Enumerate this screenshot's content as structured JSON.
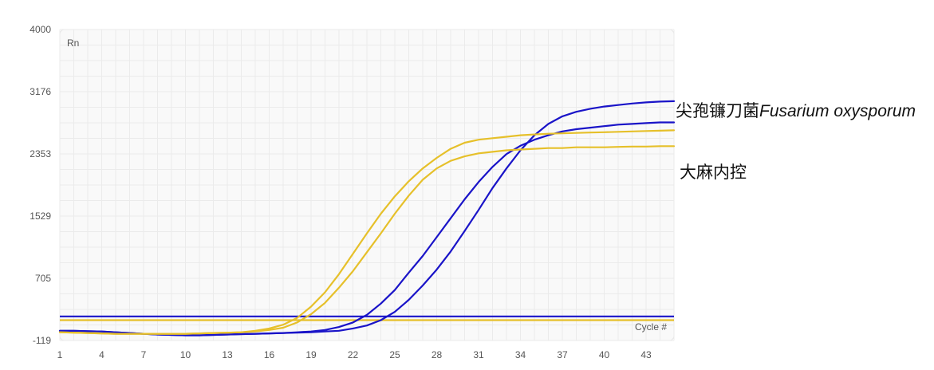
{
  "chart_data": {
    "type": "line",
    "title": "",
    "xlabel": "Cycle #",
    "ylabel": "Rn",
    "xlim": [
      1,
      45
    ],
    "ylim": [
      -119,
      4000
    ],
    "x_ticks": [
      1,
      4,
      7,
      10,
      13,
      16,
      19,
      22,
      25,
      28,
      31,
      34,
      37,
      40,
      43
    ],
    "y_ticks": [
      -119,
      705,
      1529,
      2353,
      3176,
      4000
    ],
    "grid": true,
    "legend": "none",
    "colors": {
      "blue": "#1a14c8",
      "yellow": "#e6c02a",
      "grid": "#ebebeb",
      "plot_bg": "#f9f9f9"
    },
    "x": [
      1,
      2,
      3,
      4,
      5,
      6,
      7,
      8,
      9,
      10,
      11,
      12,
      13,
      14,
      15,
      16,
      17,
      18,
      19,
      20,
      21,
      22,
      23,
      24,
      25,
      26,
      27,
      28,
      29,
      30,
      31,
      32,
      33,
      34,
      35,
      36,
      37,
      38,
      39,
      40,
      41,
      42,
      43,
      44,
      45
    ],
    "series": [
      {
        "color": "blue",
        "values": [
          10,
          10,
          5,
          0,
          -10,
          -20,
          -30,
          -40,
          -45,
          -50,
          -50,
          -45,
          -40,
          -35,
          -30,
          -25,
          -20,
          -10,
          0,
          20,
          60,
          120,
          220,
          370,
          550,
          780,
          1000,
          1250,
          1500,
          1750,
          1980,
          2180,
          2350,
          2460,
          2540,
          2600,
          2650,
          2680,
          2700,
          2720,
          2740,
          2750,
          2760,
          2770,
          2770
        ]
      },
      {
        "color": "blue",
        "values": [
          10,
          10,
          5,
          0,
          -10,
          -20,
          -30,
          -40,
          -45,
          -50,
          -50,
          -45,
          -40,
          -35,
          -30,
          -25,
          -20,
          -15,
          -10,
          0,
          10,
          40,
          80,
          150,
          260,
          420,
          610,
          820,
          1060,
          1330,
          1610,
          1900,
          2160,
          2400,
          2600,
          2750,
          2850,
          2910,
          2950,
          2980,
          3000,
          3020,
          3035,
          3045,
          3050
        ]
      },
      {
        "color": "yellow",
        "values": [
          -10,
          -15,
          -20,
          -25,
          -30,
          -30,
          -30,
          -30,
          -30,
          -30,
          -25,
          -20,
          -15,
          -10,
          0,
          20,
          50,
          120,
          230,
          380,
          580,
          800,
          1050,
          1300,
          1560,
          1800,
          2010,
          2160,
          2260,
          2320,
          2360,
          2380,
          2400,
          2410,
          2420,
          2430,
          2430,
          2440,
          2440,
          2440,
          2445,
          2450,
          2450,
          2455,
          2455
        ]
      },
      {
        "color": "yellow",
        "values": [
          -10,
          -15,
          -20,
          -25,
          -30,
          -30,
          -30,
          -30,
          -30,
          -30,
          -25,
          -20,
          -15,
          -10,
          10,
          40,
          90,
          180,
          330,
          520,
          760,
          1030,
          1300,
          1560,
          1790,
          1990,
          2160,
          2300,
          2420,
          2500,
          2540,
          2560,
          2580,
          2600,
          2610,
          2620,
          2625,
          2630,
          2635,
          2640,
          2645,
          2650,
          2655,
          2660,
          2665
        ]
      }
    ],
    "thresholds": [
      {
        "color": "blue",
        "value": 200
      },
      {
        "color": "yellow",
        "value": 150
      }
    ],
    "annotations": [
      {
        "text_zh": "尖孢镰刀菌",
        "text_latin": "Fusarium oxysporum"
      },
      {
        "text_zh": "大麻内控",
        "text_latin": ""
      }
    ]
  }
}
